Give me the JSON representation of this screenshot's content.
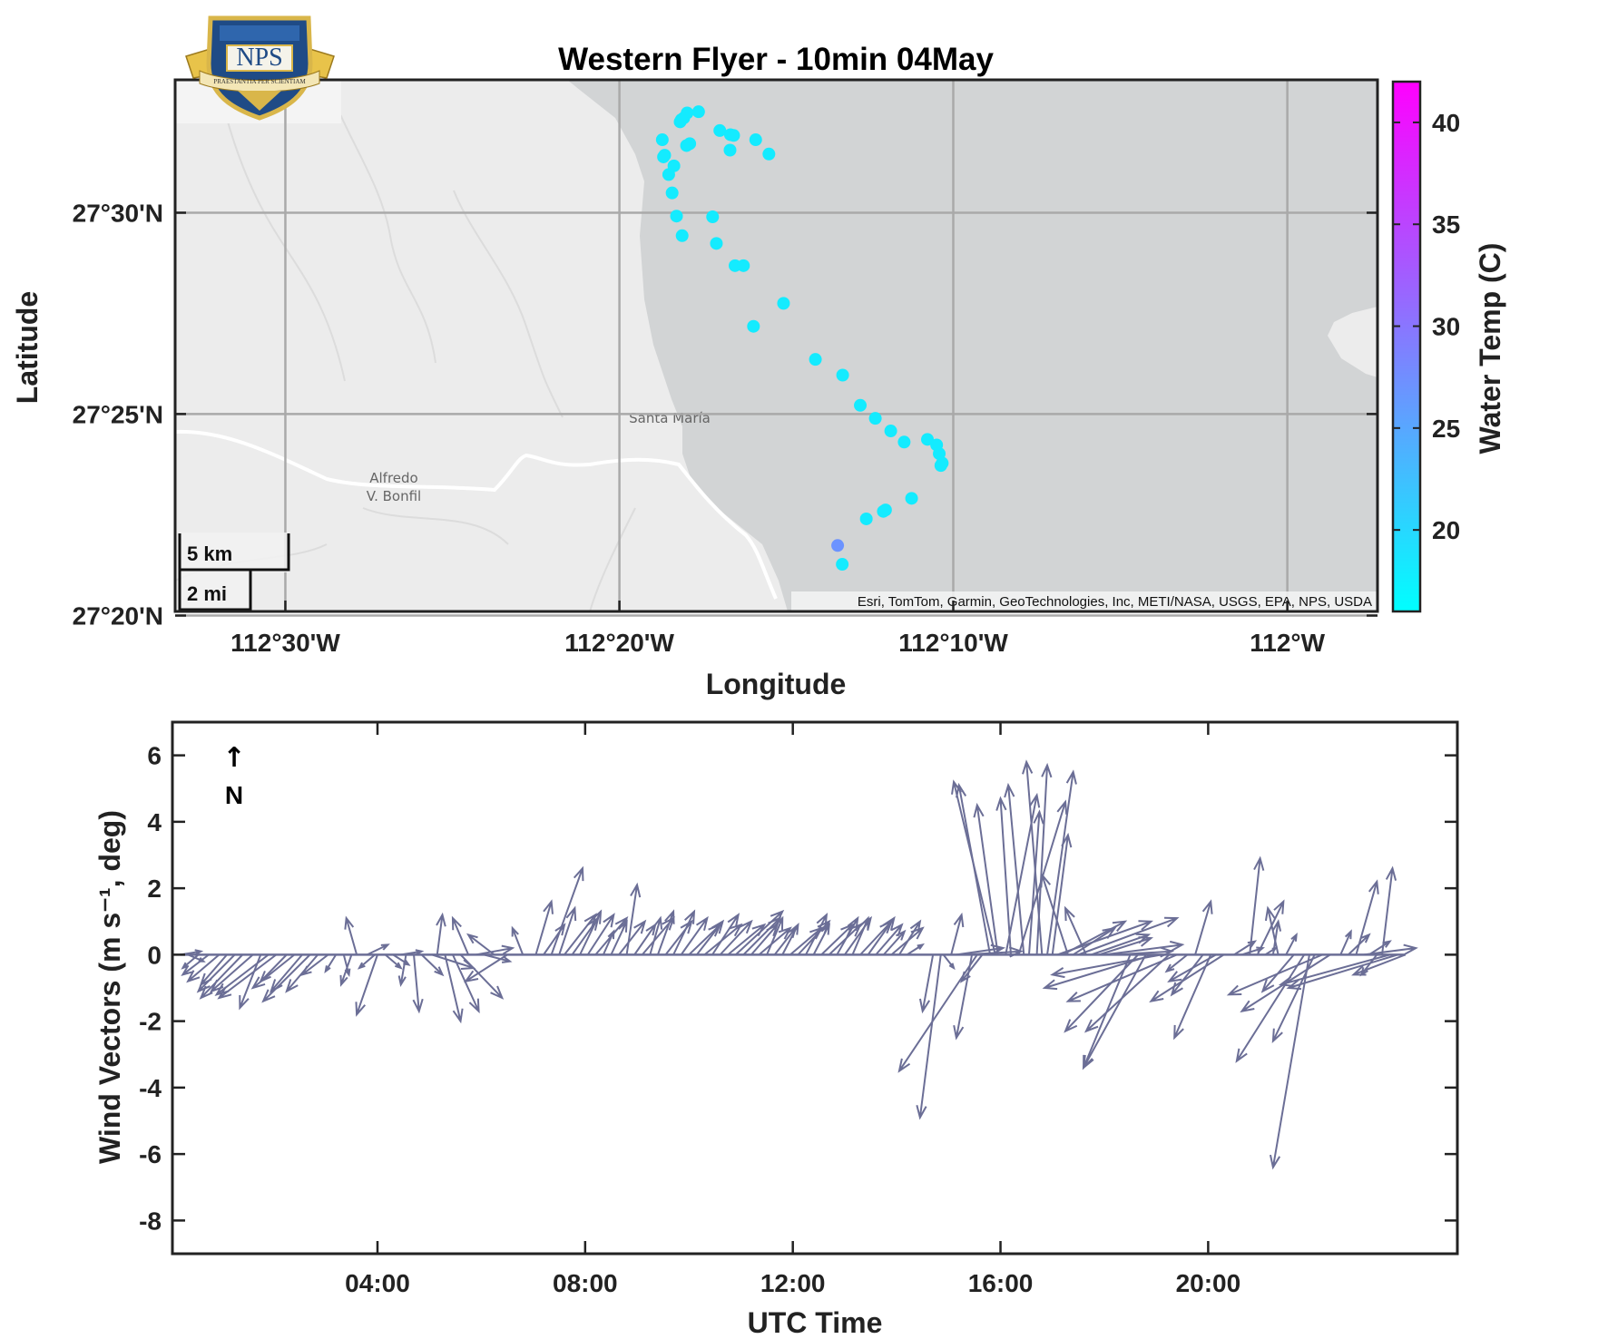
{
  "chart_data": [
    {
      "type": "scatter",
      "title": "Western Flyer - 10min 04May",
      "xlabel": "Longitude",
      "ylabel": "Latitude",
      "xlim": [
        -112.555,
        -111.955
      ],
      "ylim": [
        27.335,
        27.555
      ],
      "x_ticks": [
        {
          "value": -112.5,
          "label": "112°30'W"
        },
        {
          "value": -112.3333,
          "label": "112°20'W"
        },
        {
          "value": -112.1667,
          "label": "112°10'W"
        },
        {
          "value": -112.0,
          "label": "112°W"
        }
      ],
      "y_ticks": [
        {
          "value": 27.3333,
          "label": "27°20'N"
        },
        {
          "value": 27.4167,
          "label": "27°25'N"
        },
        {
          "value": 27.5,
          "label": "27°30'N"
        }
      ],
      "grid": true,
      "colorbar": {
        "label": "Water Temp (C)",
        "range": [
          16,
          42
        ],
        "ticks": [
          20,
          25,
          30,
          35,
          40
        ],
        "colors": [
          "#00ffff",
          "#ff00ff"
        ]
      },
      "basemap_labels": {
        "town1": "Santa María",
        "town2_line1": "Alfredo",
        "town2_line2": "V. Bonfil",
        "attribution": "Esri, TomTom, Garmin, GeoTechnologies, Inc, METI/NASA, USGS, EPA, NPS, USDA",
        "scale_km": "5 km",
        "scale_mi": "2 mi"
      },
      "logo": {
        "text": "NPS",
        "motto": "PRAESTANTIA PER SCIENTIAM"
      },
      "points": [
        {
          "lon": -112.2995,
          "lat": 27.5413,
          "temp": 18
        },
        {
          "lon": -112.2938,
          "lat": 27.5418,
          "temp": 18
        },
        {
          "lon": -112.3012,
          "lat": 27.5392,
          "temp": 18
        },
        {
          "lon": -112.303,
          "lat": 27.5376,
          "temp": 18
        },
        {
          "lon": -112.3024,
          "lat": 27.5385,
          "temp": 18
        },
        {
          "lon": -112.2832,
          "lat": 27.534,
          "temp": 18
        },
        {
          "lon": -112.2779,
          "lat": 27.5323,
          "temp": 18
        },
        {
          "lon": -112.2763,
          "lat": 27.532,
          "temp": 18
        },
        {
          "lon": -112.2653,
          "lat": 27.5302,
          "temp": 18
        },
        {
          "lon": -112.3119,
          "lat": 27.5302,
          "temp": 18
        },
        {
          "lon": -112.2982,
          "lat": 27.5286,
          "temp": 18
        },
        {
          "lon": -112.2998,
          "lat": 27.5278,
          "temp": 18
        },
        {
          "lon": -112.2781,
          "lat": 27.5259,
          "temp": 18
        },
        {
          "lon": -112.2587,
          "lat": 27.5243,
          "temp": 18
        },
        {
          "lon": -112.3113,
          "lat": 27.5231,
          "temp": 18
        },
        {
          "lon": -112.3107,
          "lat": 27.5238,
          "temp": 18
        },
        {
          "lon": -112.3061,
          "lat": 27.5194,
          "temp": 18
        },
        {
          "lon": -112.3087,
          "lat": 27.5158,
          "temp": 18
        },
        {
          "lon": -112.307,
          "lat": 27.5082,
          "temp": 18
        },
        {
          "lon": -112.3048,
          "lat": 27.4986,
          "temp": 18
        },
        {
          "lon": -112.2868,
          "lat": 27.4983,
          "temp": 18
        },
        {
          "lon": -112.302,
          "lat": 27.4905,
          "temp": 18
        },
        {
          "lon": -112.2849,
          "lat": 27.4873,
          "temp": 18
        },
        {
          "lon": -112.2756,
          "lat": 27.4781,
          "temp": 18
        },
        {
          "lon": -112.2714,
          "lat": 27.4781,
          "temp": 18
        },
        {
          "lon": -112.2514,
          "lat": 27.4625,
          "temp": 18
        },
        {
          "lon": -112.2664,
          "lat": 27.453,
          "temp": 18
        },
        {
          "lon": -112.2355,
          "lat": 27.4393,
          "temp": 18
        },
        {
          "lon": -112.2219,
          "lat": 27.4328,
          "temp": 18
        },
        {
          "lon": -112.2131,
          "lat": 27.4203,
          "temp": 18
        },
        {
          "lon": -112.2056,
          "lat": 27.4149,
          "temp": 18
        },
        {
          "lon": -112.1979,
          "lat": 27.4097,
          "temp": 18
        },
        {
          "lon": -112.1912,
          "lat": 27.4051,
          "temp": 18
        },
        {
          "lon": -112.1796,
          "lat": 27.4062,
          "temp": 18
        },
        {
          "lon": -112.175,
          "lat": 27.4039,
          "temp": 18
        },
        {
          "lon": -112.1737,
          "lat": 27.4003,
          "temp": 18
        },
        {
          "lon": -112.1722,
          "lat": 27.3964,
          "temp": 18
        },
        {
          "lon": -112.1729,
          "lat": 27.3954,
          "temp": 18
        },
        {
          "lon": -112.1875,
          "lat": 27.3818,
          "temp": 18
        },
        {
          "lon": -112.2005,
          "lat": 27.377,
          "temp": 18
        },
        {
          "lon": -112.2016,
          "lat": 27.3764,
          "temp": 18
        },
        {
          "lon": -112.2101,
          "lat": 27.3733,
          "temp": 18
        },
        {
          "lon": -112.2244,
          "lat": 27.3623,
          "temp": 27
        },
        {
          "lon": -112.2221,
          "lat": 27.3545,
          "temp": 18
        }
      ]
    },
    {
      "type": "quiver",
      "xlabel": "UTC Time",
      "ylabel": "Wind Vectors (m s⁻¹, deg)",
      "xlim": [
        0.05,
        24.8
      ],
      "ylim": [
        -9,
        7
      ],
      "x_ticks": [
        {
          "value": 4,
          "label": "04:00"
        },
        {
          "value": 8,
          "label": "08:00"
        },
        {
          "value": 12,
          "label": "12:00"
        },
        {
          "value": 16,
          "label": "16:00"
        },
        {
          "value": 20,
          "label": "20:00"
        }
      ],
      "y_ticks": [
        -8,
        -6,
        -4,
        -2,
        0,
        2,
        4,
        6
      ],
      "north_arrow": {
        "symbol": "↑",
        "label": "N"
      },
      "color": "#6b6e96",
      "vectors": [
        [
          0.2,
          0.4,
          0.1
        ],
        [
          0.35,
          0.3,
          -0.2
        ],
        [
          0.55,
          -0.3,
          -0.4
        ],
        [
          0.75,
          -0.5,
          -0.6
        ],
        [
          0.95,
          -0.6,
          -0.8
        ],
        [
          1.1,
          -0.5,
          -0.9
        ],
        [
          1.25,
          -0.7,
          -1.1
        ],
        [
          1.4,
          -0.8,
          -1.3
        ],
        [
          1.6,
          -0.8,
          -1.1
        ],
        [
          1.75,
          -0.4,
          -1.6
        ],
        [
          1.9,
          -1.0,
          -1.2
        ],
        [
          2.05,
          -1.1,
          -1.3
        ],
        [
          2.25,
          -0.5,
          -0.8
        ],
        [
          2.4,
          -0.8,
          -1.0
        ],
        [
          2.55,
          -0.6,
          -1.1
        ],
        [
          2.7,
          -0.9,
          -1.4
        ],
        [
          2.85,
          -0.6,
          -1.1
        ],
        [
          3.05,
          -0.5,
          -0.6
        ],
        [
          3.2,
          -0.2,
          -0.5
        ],
        [
          3.35,
          0.1,
          -0.6
        ],
        [
          3.5,
          -0.2,
          -0.9
        ],
        [
          3.6,
          -0.2,
          1.1
        ],
        [
          3.8,
          0.4,
          0.3
        ],
        [
          3.95,
          -0.3,
          -0.4
        ],
        [
          4.0,
          -0.4,
          -1.8
        ],
        [
          4.15,
          0.3,
          -0.4
        ],
        [
          4.3,
          0.3,
          -0.3
        ],
        [
          4.45,
          0.4,
          0.1
        ],
        [
          4.55,
          -0.1,
          -0.9
        ],
        [
          4.7,
          0.1,
          -1.7
        ],
        [
          4.85,
          0.4,
          -0.6
        ],
        [
          5.05,
          0.8,
          -0.4
        ],
        [
          5.15,
          0.1,
          1.2
        ],
        [
          5.3,
          0.3,
          -2.0
        ],
        [
          5.45,
          0.5,
          -1.7
        ],
        [
          5.6,
          0.8,
          -1.3
        ],
        [
          5.75,
          -0.3,
          1.1
        ],
        [
          5.9,
          0.7,
          0.2
        ],
        [
          6.05,
          0.5,
          -0.2
        ],
        [
          6.25,
          -0.5,
          0.6
        ],
        [
          6.5,
          -0.8,
          -0.8
        ],
        [
          6.8,
          -0.2,
          0.8
        ],
        [
          7.05,
          0.3,
          1.6
        ],
        [
          7.2,
          0.4,
          0.9
        ],
        [
          7.35,
          0.6,
          2.6
        ],
        [
          7.5,
          0.3,
          1.4
        ],
        [
          7.6,
          0.6,
          1.2
        ],
        [
          7.75,
          0.5,
          1.1
        ],
        [
          7.9,
          0.4,
          1.3
        ],
        [
          8.05,
          0.5,
          1.2
        ],
        [
          8.2,
          0.6,
          1.1
        ],
        [
          8.35,
          0.2,
          0.7
        ],
        [
          8.5,
          0.3,
          1.0
        ],
        [
          8.65,
          0.5,
          1.0
        ],
        [
          8.8,
          0.2,
          2.1
        ],
        [
          8.95,
          0.4,
          0.9
        ],
        [
          9.1,
          0.6,
          1.1
        ],
        [
          9.25,
          0.2,
          1.1
        ],
        [
          9.4,
          0.3,
          1.3
        ],
        [
          9.55,
          0.5,
          1.0
        ],
        [
          9.7,
          0.4,
          1.3
        ],
        [
          9.85,
          0.5,
          1.1
        ],
        [
          10.0,
          0.6,
          0.9
        ],
        [
          10.15,
          0.5,
          1.0
        ],
        [
          10.3,
          0.7,
          0.9
        ],
        [
          10.45,
          0.5,
          1.2
        ],
        [
          10.6,
          0.6,
          1.0
        ],
        [
          10.75,
          0.7,
          0.9
        ],
        [
          10.9,
          0.9,
          1.3
        ],
        [
          11.05,
          0.7,
          1.1
        ],
        [
          11.2,
          0.5,
          0.9
        ],
        [
          11.35,
          0.6,
          0.8
        ],
        [
          11.5,
          0.3,
          1.1
        ],
        [
          11.65,
          0.4,
          0.8
        ],
        [
          11.8,
          0.3,
          0.9
        ],
        [
          11.95,
          0.6,
          0.8
        ],
        [
          12.1,
          0.6,
          1.0
        ],
        [
          12.25,
          0.4,
          1.2
        ],
        [
          12.4,
          0.3,
          0.9
        ],
        [
          12.55,
          0.6,
          0.9
        ],
        [
          12.7,
          0.6,
          0.9
        ],
        [
          12.85,
          0.4,
          1.1
        ],
        [
          13.0,
          0.5,
          1.1
        ],
        [
          13.15,
          0.3,
          1.1
        ],
        [
          13.3,
          0.6,
          1.0
        ],
        [
          13.45,
          0.5,
          1.1
        ],
        [
          13.6,
          0.5,
          0.9
        ],
        [
          13.75,
          0.4,
          0.7
        ],
        [
          13.9,
          0.6,
          0.8
        ],
        [
          14.05,
          0.4,
          1.0
        ],
        [
          14.2,
          0.3,
          0.3
        ],
        [
          14.7,
          -0.2,
          -1.7
        ],
        [
          14.85,
          -0.4,
          -4.9
        ],
        [
          14.9,
          0.2,
          -0.4
        ],
        [
          15.05,
          0.2,
          1.2
        ],
        [
          15.15,
          0.9,
          0.2
        ],
        [
          15.3,
          1.1,
          0.1
        ],
        [
          15.45,
          -0.3,
          -2.5
        ],
        [
          15.55,
          -1.5,
          -3.5
        ],
        [
          15.65,
          -0.4,
          -0.8
        ],
        [
          15.8,
          -0.6,
          5.1
        ],
        [
          15.9,
          -0.8,
          5.2
        ],
        [
          15.95,
          -0.4,
          4.5
        ],
        [
          16.1,
          0.6,
          4.8
        ],
        [
          16.2,
          -0.2,
          4.7
        ],
        [
          16.35,
          0.9,
          4.6
        ],
        [
          16.45,
          -0.3,
          5.1
        ],
        [
          16.55,
          0.2,
          4.3
        ],
        [
          16.7,
          0.2,
          5.7
        ],
        [
          16.8,
          -0.3,
          5.8
        ],
        [
          16.9,
          0.5,
          5.5
        ],
        [
          17.0,
          0.3,
          3.6
        ],
        [
          17.1,
          1.8,
          1.0
        ],
        [
          17.2,
          1.2,
          1.0
        ],
        [
          17.3,
          -0.5,
          2.4
        ],
        [
          17.4,
          0.8,
          0.8
        ],
        [
          17.5,
          1.9,
          1.1
        ],
        [
          17.65,
          -0.4,
          1.4
        ],
        [
          17.75,
          1.1,
          0.6
        ],
        [
          17.9,
          1.0,
          0.5
        ],
        [
          18.0,
          1.5,
          0.3
        ],
        [
          18.2,
          1.1,
          0.1
        ],
        [
          18.5,
          -0.9,
          -3.4
        ],
        [
          18.65,
          -1.4,
          -2.3
        ],
        [
          18.8,
          -1.2,
          -3.4
        ],
        [
          18.95,
          -2.1,
          -1.0
        ],
        [
          19.1,
          -2.1,
          -0.6
        ],
        [
          19.25,
          -1.6,
          -2.3
        ],
        [
          19.4,
          -2.1,
          -1.4
        ],
        [
          19.6,
          -0.4,
          -0.5
        ],
        [
          19.75,
          0.3,
          1.6
        ],
        [
          19.9,
          -0.6,
          -1.2
        ],
        [
          20.05,
          -0.7,
          -2.5
        ],
        [
          20.15,
          -0.9,
          -0.8
        ],
        [
          20.3,
          -1.4,
          -1.4
        ],
        [
          20.5,
          0.4,
          0.4
        ],
        [
          20.65,
          0.4,
          0.2
        ],
        [
          20.8,
          0.2,
          2.9
        ],
        [
          20.95,
          0.5,
          1.6
        ],
        [
          21.1,
          0.2,
          0.2
        ],
        [
          21.25,
          0.1,
          1.0
        ],
        [
          21.35,
          -0.2,
          1.4
        ],
        [
          21.5,
          0.2,
          0.6
        ],
        [
          21.65,
          -0.6,
          -1.1
        ],
        [
          21.85,
          -1.3,
          -3.2
        ],
        [
          21.95,
          -0.7,
          -6.4
        ],
        [
          22.05,
          -0.8,
          -2.6
        ],
        [
          22.2,
          -1.8,
          -1.2
        ],
        [
          22.35,
          -1.7,
          -1.7
        ],
        [
          22.55,
          0.2,
          0.7
        ],
        [
          22.7,
          0.4,
          0.6
        ],
        [
          22.85,
          0.4,
          2.2
        ],
        [
          23.0,
          1.0,
          0.2
        ],
        [
          23.1,
          0.4,
          0.4
        ],
        [
          23.25,
          -0.3,
          -0.6
        ],
        [
          23.35,
          0.2,
          2.6
        ],
        [
          23.5,
          -2.1,
          -0.9
        ],
        [
          23.65,
          -2.1,
          -1.0
        ],
        [
          23.8,
          -1.0,
          -0.6
        ]
      ]
    }
  ]
}
